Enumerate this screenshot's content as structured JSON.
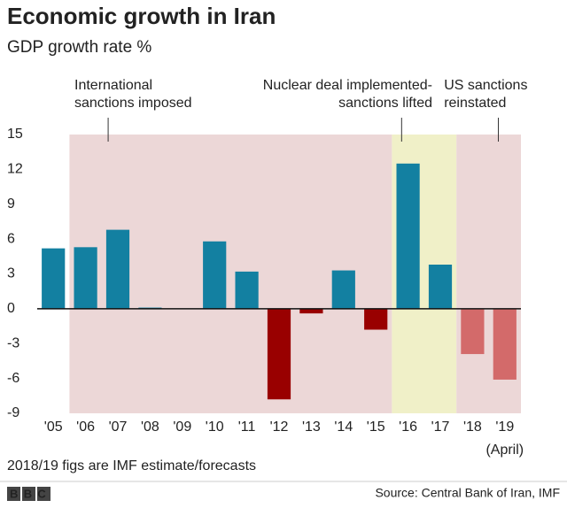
{
  "chart_data": {
    "type": "bar",
    "title": "Economic growth in Iran",
    "subtitle": "GDP growth rate %",
    "categories": [
      "'05",
      "'06",
      "'07",
      "'08",
      "'09",
      "'10",
      "'11",
      "'12",
      "'13",
      "'14",
      "'15",
      "'16",
      "'17",
      "'18",
      "'19"
    ],
    "values": [
      5.2,
      5.3,
      6.8,
      0.1,
      0,
      5.8,
      3.2,
      -7.8,
      -0.4,
      3.3,
      -1.8,
      12.5,
      3.8,
      -3.9,
      -6.1
    ],
    "colors": [
      "#1380a1",
      "#1380a1",
      "#1380a1",
      "#1380a1",
      "#1380a1",
      "#1380a1",
      "#1380a1",
      "#990000",
      "#990000",
      "#1380a1",
      "#990000",
      "#1380a1",
      "#1380a1",
      "#d36a6a",
      "#d36a6a"
    ],
    "ylim": [
      -9,
      15
    ],
    "yticks": [
      -9,
      -6,
      -3,
      0,
      3,
      6,
      9,
      12,
      15
    ],
    "grid": false,
    "x_note": "(April)",
    "regions": [
      {
        "from": "'06",
        "to": "'15",
        "color": "#ecd7d7",
        "label": [
          "International",
          "sanctions imposed"
        ]
      },
      {
        "from": "'16",
        "to": "'17",
        "color": "#f0f0c8",
        "label": [
          "Nuclear deal implemented-",
          "sanctions lifted"
        ]
      },
      {
        "from": "'18",
        "to": "'19",
        "color": "#ecd7d7",
        "label": [
          "US sanctions",
          "reinstated"
        ]
      }
    ],
    "note": "2018/19 figs are IMF estimate/forecasts",
    "source": "Source: Central Bank of Iran, IMF",
    "logo": "BBC"
  }
}
